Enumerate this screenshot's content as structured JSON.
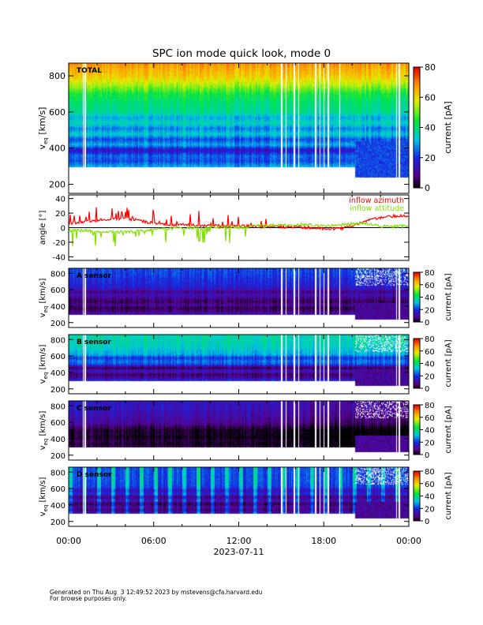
{
  "title": "SPC ion mode quick look, mode 0",
  "footer": {
    "line1": "Generated on Thu Aug  3 12:49:52 2023 by mstevens@cfa.harvard.edu",
    "line2": "For browse purposes only."
  },
  "chart_data": {
    "type": "heatmap",
    "xaxis": {
      "range_hours": [
        0,
        24
      ],
      "tick_hours": [
        0,
        6,
        12,
        18,
        24
      ],
      "tick_labels": [
        "00:00",
        "06:00",
        "12:00",
        "18:00",
        "00:00"
      ],
      "minor_every_hours": 2,
      "xlabel": "2023-07-11"
    },
    "colorbar": {
      "label": "current [pA]",
      "range": [
        0,
        80
      ],
      "ticks": [
        "0",
        "20",
        "40",
        "60",
        "80"
      ]
    },
    "data_gaps_hours": [
      1.0,
      1.15,
      15.0,
      15.3,
      15.9,
      16.2,
      17.4,
      17.7,
      18.0,
      18.3,
      19.1,
      23.1,
      23.3
    ],
    "panels": [
      {
        "name": "TOTAL",
        "label": "TOTAL",
        "ylabel": "v",
        "ylabel_sub": "eq",
        "ylabel_unit": "[km/s]",
        "ylim": [
          150,
          870
        ],
        "yticks": [
          200,
          400,
          600,
          800
        ],
        "profile": [
          [
            300,
            30
          ],
          [
            330,
            22
          ],
          [
            360,
            25
          ],
          [
            390,
            14
          ],
          [
            420,
            30
          ],
          [
            450,
            22
          ],
          [
            480,
            34
          ],
          [
            510,
            26
          ],
          [
            540,
            36
          ],
          [
            570,
            30
          ],
          [
            600,
            38
          ],
          [
            650,
            40
          ],
          [
            700,
            44
          ],
          [
            750,
            54
          ],
          [
            800,
            62
          ],
          [
            850,
            66
          ],
          [
            870,
            68
          ]
        ]
      },
      {
        "name": "A sensor",
        "label": "A sensor",
        "ylabel": "v",
        "ylabel_sub": "eq",
        "ylabel_unit": "[km/s]",
        "ylim": [
          140,
          860
        ],
        "yticks": [
          200,
          400,
          600,
          800
        ],
        "profile": [
          [
            300,
            14
          ],
          [
            340,
            8
          ],
          [
            380,
            4
          ],
          [
            420,
            10
          ],
          [
            460,
            5
          ],
          [
            500,
            9
          ],
          [
            540,
            14
          ],
          [
            580,
            8
          ],
          [
            620,
            16
          ],
          [
            680,
            18
          ],
          [
            750,
            20
          ],
          [
            820,
            22
          ],
          [
            860,
            22
          ]
        ]
      },
      {
        "name": "B sensor",
        "label": "B sensor",
        "ylabel": "v",
        "ylabel_sub": "eq",
        "ylabel_unit": "[km/s]",
        "ylim": [
          140,
          860
        ],
        "yticks": [
          200,
          400,
          600,
          800
        ],
        "profile": [
          [
            300,
            20
          ],
          [
            340,
            10
          ],
          [
            380,
            6
          ],
          [
            420,
            16
          ],
          [
            460,
            4
          ],
          [
            500,
            22
          ],
          [
            540,
            26
          ],
          [
            580,
            20
          ],
          [
            620,
            30
          ],
          [
            700,
            34
          ],
          [
            780,
            36
          ],
          [
            860,
            36
          ]
        ]
      },
      {
        "name": "C sensor",
        "label": "C sensor",
        "ylabel": "v",
        "ylabel_sub": "eq",
        "ylabel_unit": "[km/s]",
        "ylim": [
          140,
          860
        ],
        "yticks": [
          200,
          400,
          600,
          800
        ],
        "profile": [
          [
            300,
            6
          ],
          [
            340,
            3
          ],
          [
            380,
            5
          ],
          [
            420,
            2
          ],
          [
            460,
            4
          ],
          [
            500,
            3
          ],
          [
            540,
            6
          ],
          [
            580,
            10
          ],
          [
            620,
            12
          ],
          [
            700,
            14
          ],
          [
            780,
            16
          ],
          [
            860,
            16
          ]
        ]
      },
      {
        "name": "D sensor",
        "label": "D sensor",
        "ylabel": "v",
        "ylabel_sub": "eq",
        "ylabel_unit": "[km/s]",
        "ylim": [
          140,
          860
        ],
        "yticks": [
          200,
          400,
          600,
          800
        ],
        "profile": [
          [
            300,
            14
          ],
          [
            340,
            6
          ],
          [
            380,
            10
          ],
          [
            420,
            4
          ],
          [
            460,
            14
          ],
          [
            500,
            6
          ],
          [
            540,
            18
          ],
          [
            580,
            12
          ],
          [
            620,
            20
          ],
          [
            700,
            22
          ],
          [
            780,
            22
          ],
          [
            860,
            22
          ]
        ]
      }
    ],
    "angle_panel": {
      "type": "line",
      "ylabel": "angle [°]",
      "ylim": [
        -45,
        45
      ],
      "yticks": [
        -40,
        -20,
        0,
        20,
        40
      ],
      "series": [
        {
          "name": "inflow azimuth",
          "color": "#ff0000",
          "hourly": [
            6,
            8,
            10,
            12,
            12,
            10,
            6,
            4,
            4,
            3,
            3,
            2,
            2,
            2,
            2,
            1,
            1,
            0,
            -1,
            -2,
            2,
            10,
            14,
            16,
            16
          ]
        },
        {
          "name": "inflow attitude",
          "color": "#80e000",
          "hourly": [
            -4,
            -4,
            -6,
            -6,
            -6,
            -5,
            -2,
            -1,
            0,
            0,
            1,
            1,
            0,
            2,
            3,
            3,
            4,
            4,
            2,
            3,
            5,
            6,
            2,
            2,
            2
          ]
        }
      ]
    }
  }
}
